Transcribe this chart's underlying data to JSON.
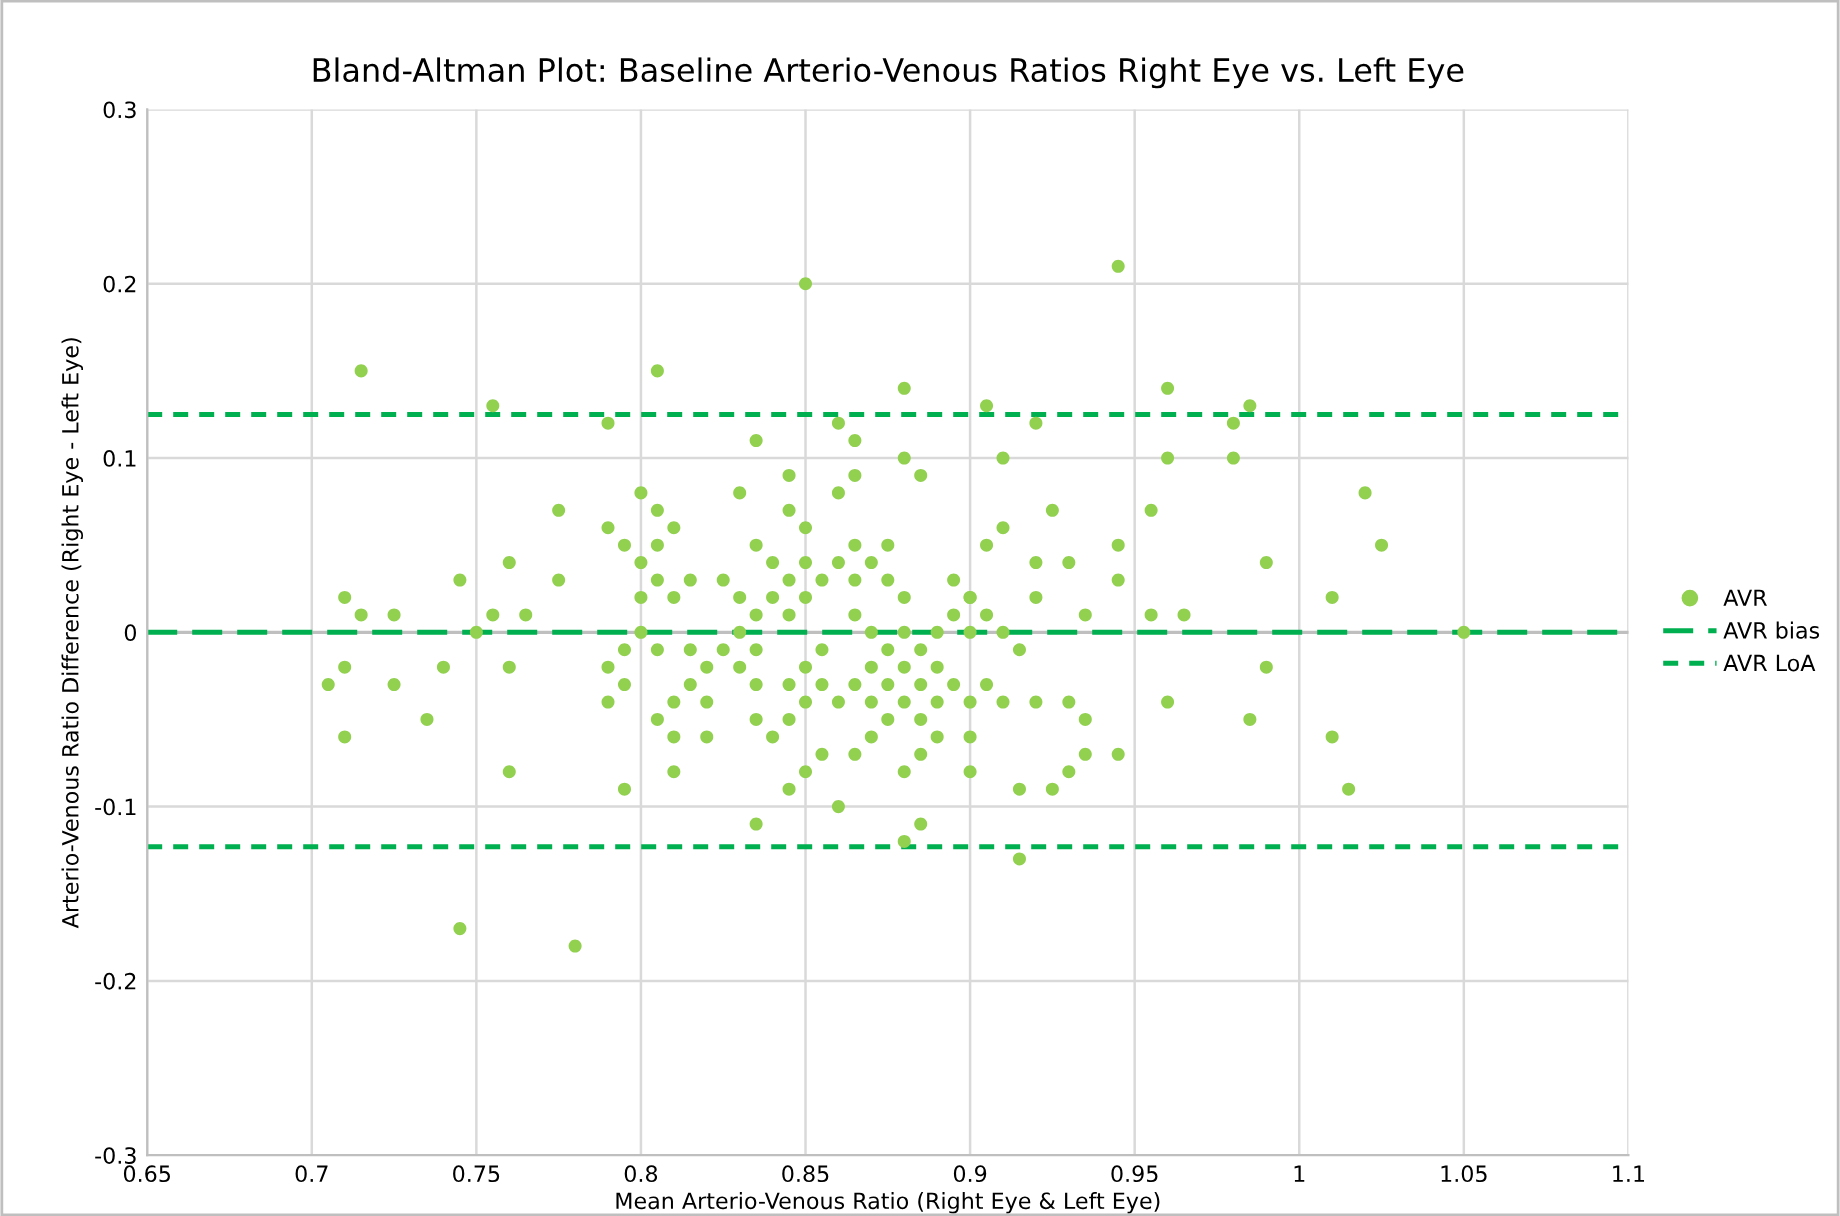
{
  "chart_data": {
    "type": "scatter",
    "title": "Bland-Altman Plot: Baseline Arterio-Venous Ratios Right Eye vs. Left Eye",
    "xlabel": "Mean Arterio-Venous Ratio (Right Eye & Left Eye)",
    "ylabel": "Arterio-Venous Ratio Difference (Right Eye - Left Eye)",
    "xlim": [
      0.65,
      1.1
    ],
    "xticks": [
      0.65,
      0.7,
      0.75,
      0.8,
      0.85,
      0.9,
      0.95,
      1,
      1.05,
      1.1
    ],
    "ylim": [
      -0.3,
      0.3
    ],
    "yticks": [
      -0.3,
      -0.2,
      -0.1,
      0,
      0.1,
      0.2,
      0.3
    ],
    "grid": true,
    "legend": "right",
    "series": [
      {
        "name": "AVR",
        "type": "scatter",
        "color": "#92d050",
        "marker": "circle",
        "x": [
          0.705,
          0.71,
          0.71,
          0.71,
          0.715,
          0.715,
          0.725,
          0.725,
          0.735,
          0.74,
          0.745,
          0.745,
          0.75,
          0.755,
          0.755,
          0.76,
          0.76,
          0.76,
          0.765,
          0.775,
          0.775,
          0.78,
          0.79,
          0.79,
          0.79,
          0.79,
          0.795,
          0.795,
          0.795,
          0.795,
          0.8,
          0.8,
          0.8,
          0.8,
          0.805,
          0.805,
          0.805,
          0.805,
          0.805,
          0.805,
          0.81,
          0.81,
          0.81,
          0.81,
          0.81,
          0.815,
          0.815,
          0.815,
          0.82,
          0.82,
          0.82,
          0.825,
          0.825,
          0.83,
          0.83,
          0.83,
          0.83,
          0.835,
          0.835,
          0.835,
          0.835,
          0.835,
          0.835,
          0.835,
          0.84,
          0.84,
          0.84,
          0.845,
          0.845,
          0.845,
          0.845,
          0.845,
          0.845,
          0.845,
          0.85,
          0.85,
          0.85,
          0.85,
          0.85,
          0.85,
          0.85,
          0.855,
          0.855,
          0.855,
          0.855,
          0.86,
          0.86,
          0.86,
          0.86,
          0.86,
          0.865,
          0.865,
          0.865,
          0.865,
          0.865,
          0.865,
          0.865,
          0.87,
          0.87,
          0.87,
          0.87,
          0.87,
          0.875,
          0.875,
          0.875,
          0.875,
          0.875,
          0.88,
          0.88,
          0.88,
          0.88,
          0.88,
          0.88,
          0.88,
          0.88,
          0.885,
          0.885,
          0.885,
          0.885,
          0.885,
          0.885,
          0.89,
          0.89,
          0.89,
          0.89,
          0.895,
          0.895,
          0.895,
          0.9,
          0.9,
          0.9,
          0.9,
          0.9,
          0.9,
          0.905,
          0.905,
          0.905,
          0.905,
          0.91,
          0.91,
          0.91,
          0.91,
          0.915,
          0.915,
          0.915,
          0.92,
          0.92,
          0.92,
          0.92,
          0.925,
          0.925,
          0.93,
          0.93,
          0.93,
          0.935,
          0.935,
          0.935,
          0.945,
          0.945,
          0.945,
          0.945,
          0.955,
          0.955,
          0.96,
          0.96,
          0.96,
          0.965,
          0.98,
          0.98,
          0.985,
          0.985,
          0.99,
          0.99,
          1.01,
          1.01,
          1.015,
          1.02,
          1.025,
          1.05
        ],
        "values": [
          -0.03,
          0.02,
          -0.02,
          -0.06,
          0.15,
          0.01,
          0.01,
          -0.03,
          -0.05,
          -0.02,
          0.03,
          -0.17,
          0,
          0.13,
          0.01,
          0.04,
          -0.02,
          -0.08,
          0.01,
          0.07,
          0.03,
          -0.18,
          0.12,
          0.06,
          -0.02,
          -0.04,
          0.05,
          -0.01,
          -0.03,
          -0.09,
          0.08,
          0.04,
          0.02,
          0,
          0.15,
          0.07,
          0.05,
          0.03,
          -0.01,
          -0.05,
          0.06,
          0.02,
          -0.04,
          -0.06,
          -0.08,
          0.03,
          -0.01,
          -0.03,
          -0.02,
          -0.04,
          -0.06,
          0.03,
          -0.01,
          0.08,
          0.02,
          0,
          -0.02,
          0.11,
          0.05,
          0.01,
          -0.01,
          -0.03,
          -0.05,
          -0.11,
          0.04,
          0.02,
          -0.06,
          0.09,
          0.07,
          0.03,
          0.01,
          -0.03,
          -0.05,
          -0.09,
          0.2,
          0.06,
          0.04,
          0.02,
          -0.02,
          -0.04,
          -0.08,
          0.03,
          -0.01,
          -0.03,
          -0.07,
          0.12,
          0.08,
          0.04,
          -0.04,
          -0.1,
          0.11,
          0.09,
          0.05,
          0.03,
          0.01,
          -0.03,
          -0.07,
          0.04,
          0,
          -0.02,
          -0.04,
          -0.06,
          0.05,
          0.03,
          -0.01,
          -0.03,
          -0.05,
          0.14,
          0.1,
          0.02,
          0,
          -0.02,
          -0.04,
          -0.08,
          -0.12,
          0.09,
          -0.01,
          -0.03,
          -0.05,
          -0.07,
          -0.11,
          0,
          -0.02,
          -0.04,
          -0.06,
          0.03,
          0.01,
          -0.03,
          0.02,
          0,
          -0.04,
          -0.06,
          -0.08,
          0.02,
          0.13,
          0.05,
          0.01,
          -0.03,
          0.1,
          0.06,
          0,
          -0.04,
          -0.01,
          -0.09,
          -0.13,
          0.12,
          0.04,
          0.02,
          -0.04,
          0.07,
          -0.09,
          0.04,
          -0.04,
          -0.08,
          0.01,
          -0.05,
          -0.07,
          0.21,
          0.05,
          0.03,
          -0.07,
          0.07,
          0.01,
          0.14,
          0.1,
          -0.04,
          0.01,
          0.12,
          0.1,
          0.13,
          -0.05,
          0.04,
          -0.02,
          0.02,
          -0.06,
          -0.09,
          0.08,
          0.05,
          0
        ]
      },
      {
        "name": "AVR bias",
        "type": "line",
        "color": "#00b050",
        "line_style": "dashed",
        "x": [
          0.65,
          1.1
        ],
        "values": [
          0,
          0
        ]
      },
      {
        "name": "AVR LoA",
        "type": "line",
        "color": "#00b050",
        "line_style": "dashed",
        "x": [
          0.65,
          1.1
        ],
        "values": [
          0.125,
          0.125
        ]
      },
      {
        "type": "line",
        "color": "#00b050",
        "line_style": "dashed",
        "x": [
          0.65,
          1.1
        ],
        "values": [
          -0.123,
          -0.123
        ]
      }
    ]
  }
}
